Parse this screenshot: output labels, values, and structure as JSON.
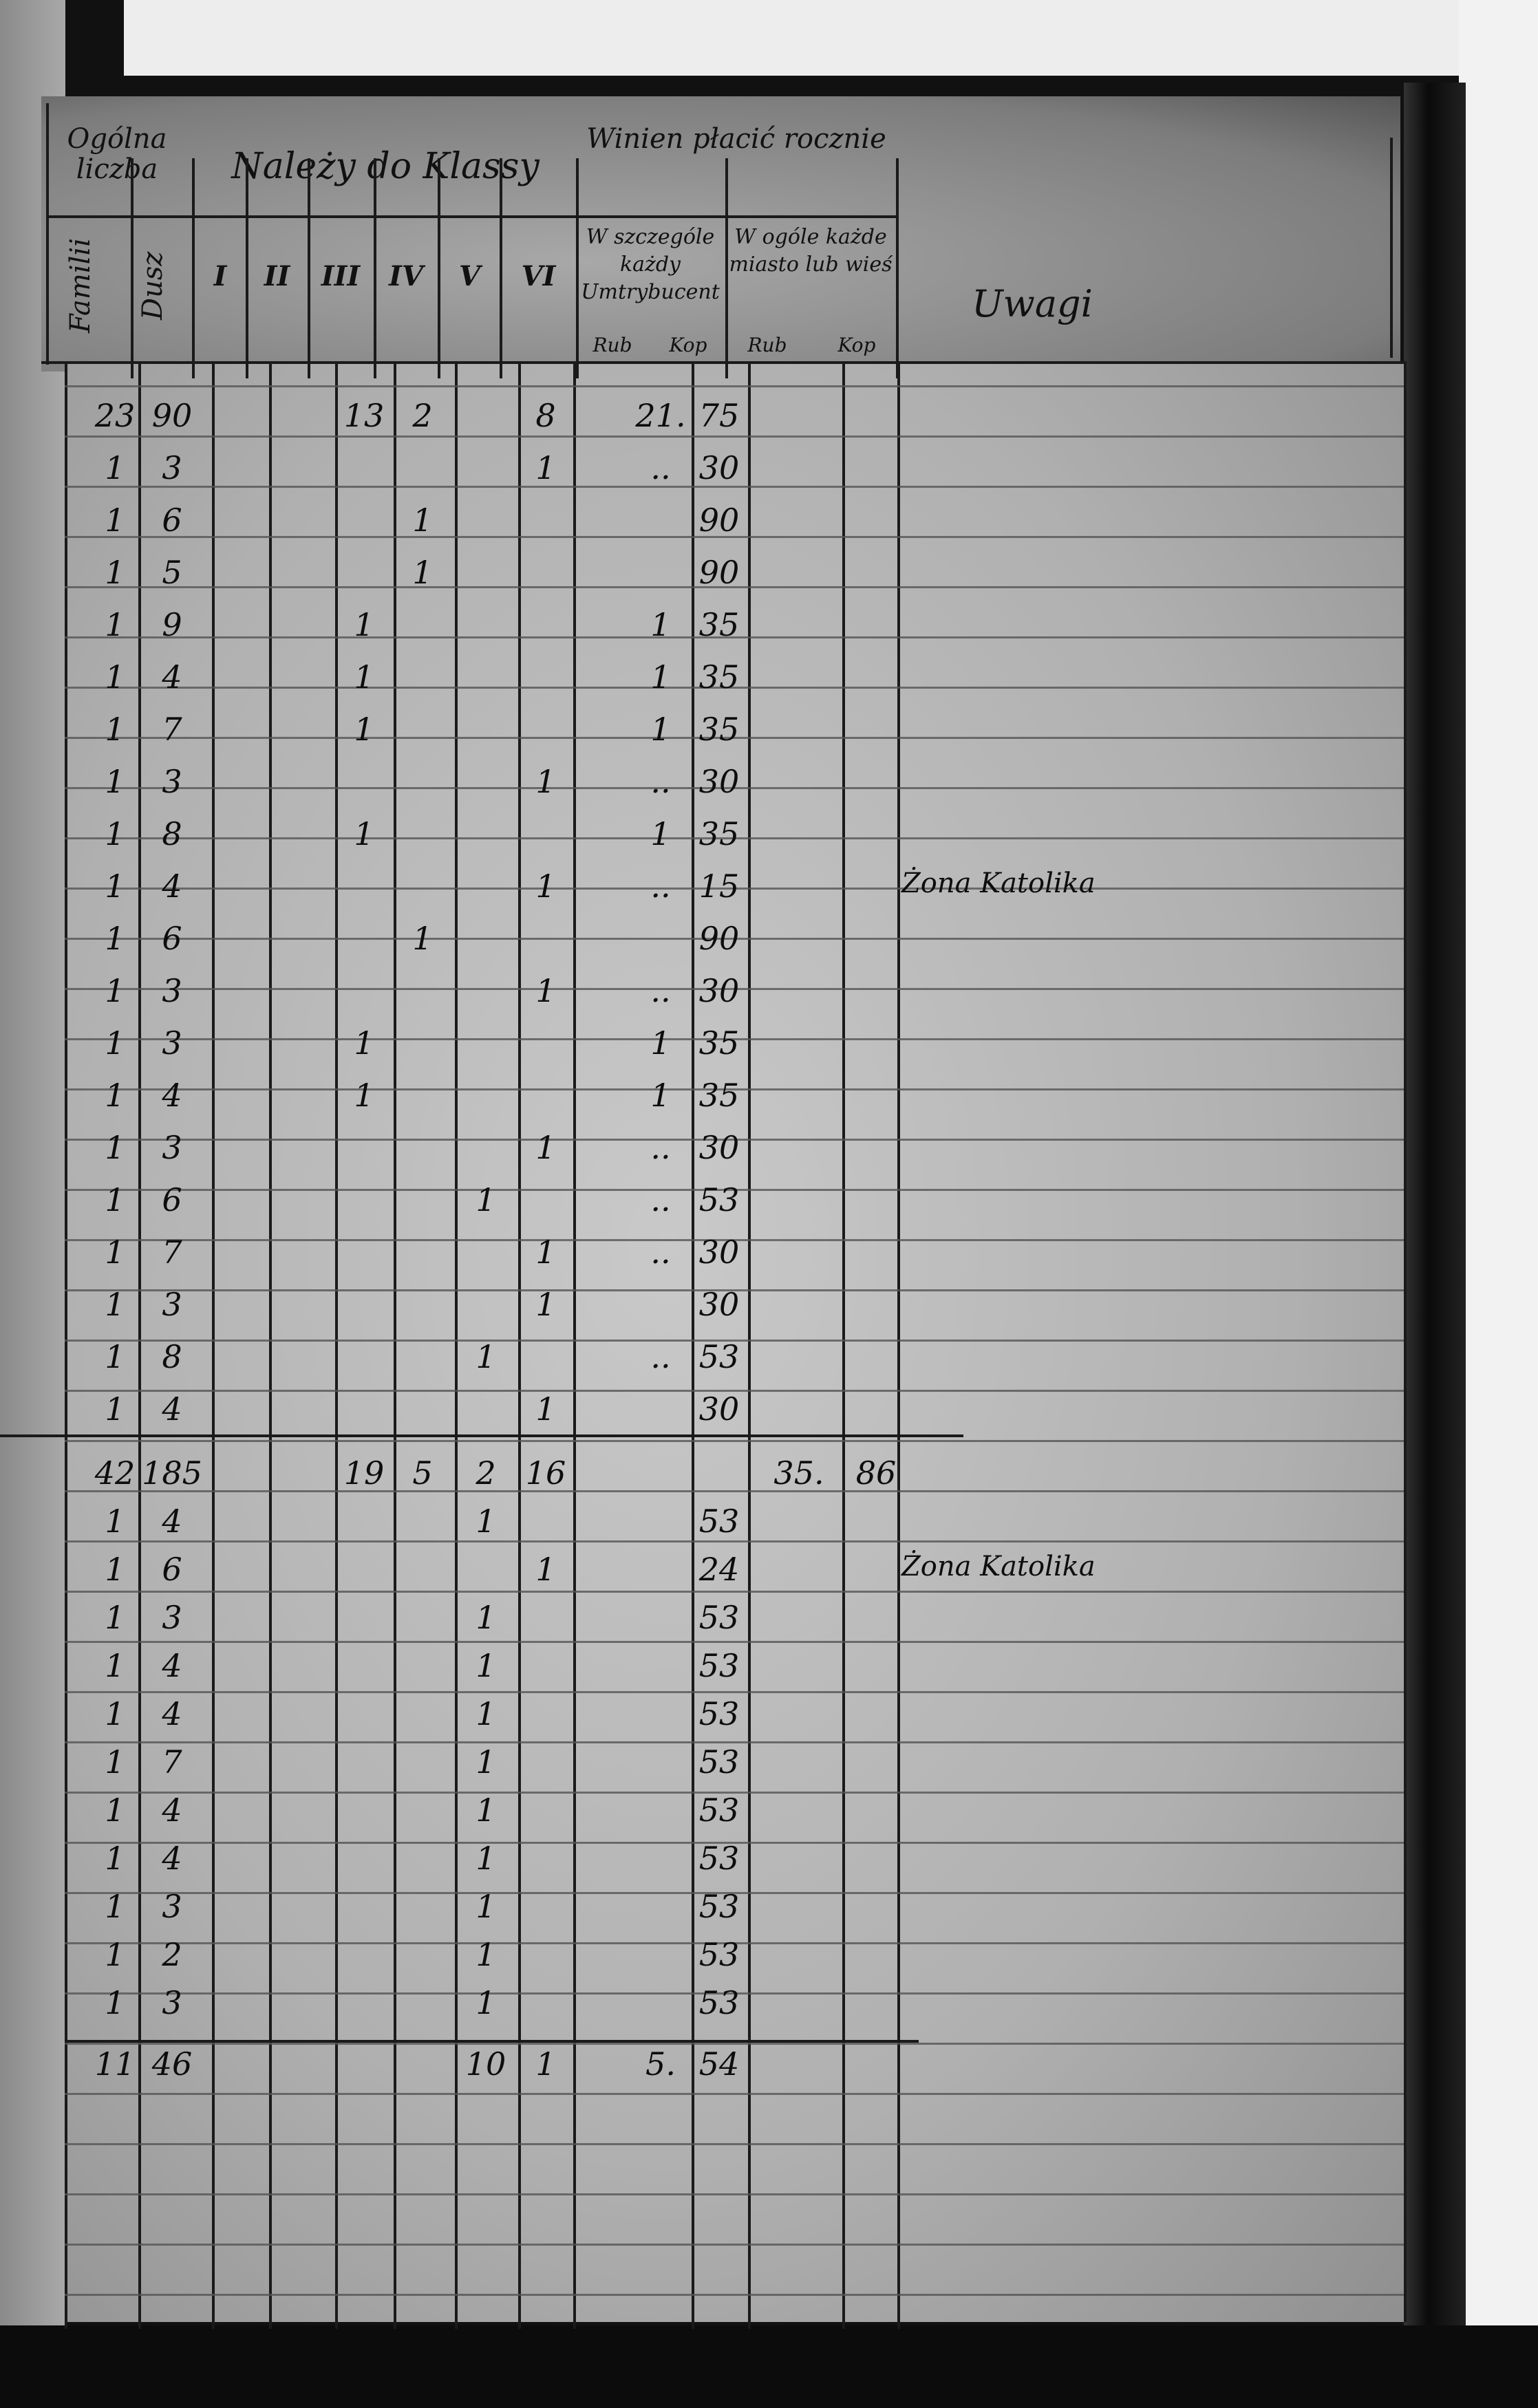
{
  "header": {
    "group_total": "Ogólna liczba",
    "group_class": "Należy do Klassy",
    "group_pay": "Winien płacić rocznie",
    "families": "Familii",
    "souls": "Dusz",
    "classes": [
      "I",
      "II",
      "III",
      "IV",
      "V",
      "VI"
    ],
    "pay_each": "W szczególe każdy Umtrybucent",
    "pay_total": "W ogóle każde miasto lub wieś",
    "rub": "Rub",
    "kop": "Kop",
    "remarks": "Uwagi"
  },
  "sections": [
    {
      "rows": [
        {
          "f": "23",
          "s": "90",
          "c": [
            "",
            "",
            "13",
            "2",
            "",
            "8"
          ],
          "r": "21.",
          "k": "75",
          "r2": "",
          "k2": "",
          "note": ""
        },
        {
          "f": "1",
          "s": "3",
          "c": [
            "",
            "",
            "",
            "",
            "",
            "1"
          ],
          "r": "..",
          "k": "30",
          "note": ""
        },
        {
          "f": "1",
          "s": "6",
          "c": [
            "",
            "",
            "",
            "1",
            "",
            ""
          ],
          "r": "",
          "k": "90",
          "note": ""
        },
        {
          "f": "1",
          "s": "5",
          "c": [
            "",
            "",
            "",
            "1",
            "",
            ""
          ],
          "r": "",
          "k": "90",
          "note": ""
        },
        {
          "f": "1",
          "s": "9",
          "c": [
            "",
            "",
            "1",
            "",
            "",
            ""
          ],
          "r": "1",
          "k": "35",
          "note": ""
        },
        {
          "f": "1",
          "s": "4",
          "c": [
            "",
            "",
            "1",
            "",
            "",
            ""
          ],
          "r": "1",
          "k": "35",
          "note": ""
        },
        {
          "f": "1",
          "s": "7",
          "c": [
            "",
            "",
            "1",
            "",
            "",
            ""
          ],
          "r": "1",
          "k": "35",
          "note": ""
        },
        {
          "f": "1",
          "s": "3",
          "c": [
            "",
            "",
            "",
            "",
            "",
            "1"
          ],
          "r": "..",
          "k": "30",
          "note": ""
        },
        {
          "f": "1",
          "s": "8",
          "c": [
            "",
            "",
            "1",
            "",
            "",
            ""
          ],
          "r": "1",
          "k": "35",
          "note": ""
        },
        {
          "f": "1",
          "s": "4",
          "c": [
            "",
            "",
            "",
            "",
            "",
            "1"
          ],
          "r": "..",
          "k": "15",
          "note": "Żona Katolika"
        },
        {
          "f": "1",
          "s": "6",
          "c": [
            "",
            "",
            "",
            "1",
            "",
            ""
          ],
          "r": "",
          "k": "90",
          "note": ""
        },
        {
          "f": "1",
          "s": "3",
          "c": [
            "",
            "",
            "",
            "",
            "",
            "1"
          ],
          "r": "..",
          "k": "30",
          "note": ""
        },
        {
          "f": "1",
          "s": "3",
          "c": [
            "",
            "",
            "1",
            "",
            "",
            ""
          ],
          "r": "1",
          "k": "35",
          "note": ""
        },
        {
          "f": "1",
          "s": "4",
          "c": [
            "",
            "",
            "1",
            "",
            "",
            ""
          ],
          "r": "1",
          "k": "35",
          "note": ""
        },
        {
          "f": "1",
          "s": "3",
          "c": [
            "",
            "",
            "",
            "",
            "",
            "1"
          ],
          "r": "..",
          "k": "30",
          "note": ""
        },
        {
          "f": "1",
          "s": "6",
          "c": [
            "",
            "",
            "",
            "",
            "1",
            ""
          ],
          "r": "..",
          "k": "53",
          "note": ""
        },
        {
          "f": "1",
          "s": "7",
          "c": [
            "",
            "",
            "",
            "",
            "",
            "1"
          ],
          "r": "..",
          "k": "30",
          "note": ""
        },
        {
          "f": "1",
          "s": "3",
          "c": [
            "",
            "",
            "",
            "",
            "",
            "1"
          ],
          "r": "",
          "k": "30",
          "note": ""
        },
        {
          "f": "1",
          "s": "8",
          "c": [
            "",
            "",
            "",
            "",
            "1",
            ""
          ],
          "r": "..",
          "k": "53",
          "note": ""
        },
        {
          "f": "1",
          "s": "4",
          "c": [
            "",
            "",
            "",
            "",
            "",
            "1"
          ],
          "r": "",
          "k": "30",
          "note": ""
        }
      ]
    },
    {
      "rows": [
        {
          "f": "42",
          "s": "185",
          "c": [
            "",
            "",
            "19",
            "5",
            "2",
            "16"
          ],
          "r": "",
          "k": "",
          "r2": "35.",
          "k2": "86",
          "note": ""
        },
        {
          "f": "1",
          "s": "4",
          "c": [
            "",
            "",
            "",
            "",
            "1",
            ""
          ],
          "r": "",
          "k": "53",
          "note": ""
        },
        {
          "f": "1",
          "s": "6",
          "c": [
            "",
            "",
            "",
            "",
            "",
            "1"
          ],
          "r": "",
          "k": "24",
          "note": "Żona Katolika"
        },
        {
          "f": "1",
          "s": "3",
          "c": [
            "",
            "",
            "",
            "",
            "1",
            ""
          ],
          "r": "",
          "k": "53",
          "note": ""
        },
        {
          "f": "1",
          "s": "4",
          "c": [
            "",
            "",
            "",
            "",
            "1",
            ""
          ],
          "r": "",
          "k": "53",
          "note": ""
        },
        {
          "f": "1",
          "s": "4",
          "c": [
            "",
            "",
            "",
            "",
            "1",
            ""
          ],
          "r": "",
          "k": "53",
          "note": ""
        },
        {
          "f": "1",
          "s": "7",
          "c": [
            "",
            "",
            "",
            "",
            "1",
            ""
          ],
          "r": "",
          "k": "53",
          "note": ""
        },
        {
          "f": "1",
          "s": "4",
          "c": [
            "",
            "",
            "",
            "",
            "1",
            ""
          ],
          "r": "",
          "k": "53",
          "note": ""
        },
        {
          "f": "1",
          "s": "4",
          "c": [
            "",
            "",
            "",
            "",
            "1",
            ""
          ],
          "r": "",
          "k": "53",
          "note": ""
        },
        {
          "f": "1",
          "s": "3",
          "c": [
            "",
            "",
            "",
            "",
            "1",
            ""
          ],
          "r": "",
          "k": "53",
          "note": ""
        },
        {
          "f": "1",
          "s": "2",
          "c": [
            "",
            "",
            "",
            "",
            "1",
            ""
          ],
          "r": "",
          "k": "53",
          "note": ""
        },
        {
          "f": "1",
          "s": "3",
          "c": [
            "",
            "",
            "",
            "",
            "1",
            ""
          ],
          "r": "",
          "k": "53",
          "note": ""
        }
      ]
    },
    {
      "rows": [
        {
          "f": "11",
          "s": "46",
          "c": [
            "",
            "",
            "",
            "",
            "10",
            "1"
          ],
          "r": "5.",
          "k": "54",
          "note": ""
        }
      ]
    }
  ]
}
